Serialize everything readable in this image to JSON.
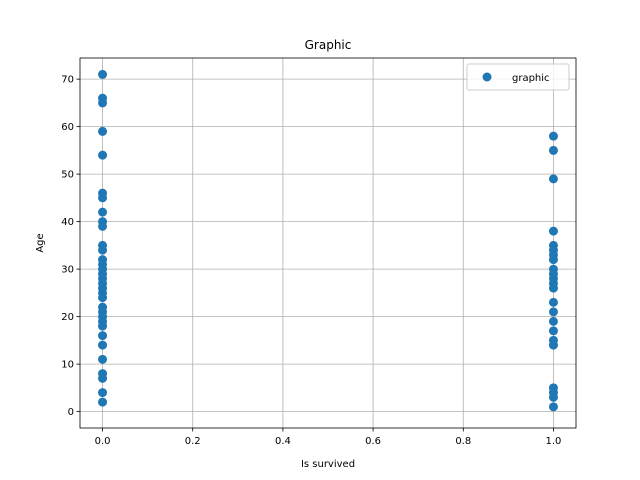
{
  "chart_data": {
    "type": "scatter",
    "title": "Graphic",
    "xlabel": "Is survived",
    "ylabel": "Age",
    "xlim": [
      -0.05,
      1.05
    ],
    "ylim": [
      -3.45,
      74.45
    ],
    "xticks": [
      0.0,
      0.2,
      0.4,
      0.6,
      0.8,
      1.0
    ],
    "xtick_labels": [
      "0.0",
      "0.2",
      "0.4",
      "0.6",
      "0.8",
      "1.0"
    ],
    "yticks": [
      0,
      10,
      20,
      30,
      40,
      50,
      60,
      70
    ],
    "ytick_labels": [
      "0",
      "10",
      "20",
      "30",
      "40",
      "50",
      "60",
      "70"
    ],
    "grid": true,
    "legend_position": "top-right",
    "series": [
      {
        "name": "graphic",
        "color": "#1f77b4",
        "points": [
          [
            0,
            71
          ],
          [
            0,
            66
          ],
          [
            0,
            65
          ],
          [
            0,
            59
          ],
          [
            0,
            54
          ],
          [
            0,
            46
          ],
          [
            0,
            45
          ],
          [
            0,
            42
          ],
          [
            0,
            40
          ],
          [
            0,
            39
          ],
          [
            0,
            35
          ],
          [
            0,
            34
          ],
          [
            0,
            32
          ],
          [
            0,
            31
          ],
          [
            0,
            30
          ],
          [
            0,
            29
          ],
          [
            0,
            28
          ],
          [
            0,
            27
          ],
          [
            0,
            26
          ],
          [
            0,
            25
          ],
          [
            0,
            24
          ],
          [
            0,
            22
          ],
          [
            0,
            21
          ],
          [
            0,
            20
          ],
          [
            0,
            19
          ],
          [
            0,
            18
          ],
          [
            0,
            16
          ],
          [
            0,
            14
          ],
          [
            0,
            11
          ],
          [
            0,
            8
          ],
          [
            0,
            7
          ],
          [
            0,
            4
          ],
          [
            0,
            2
          ],
          [
            1,
            58
          ],
          [
            1,
            55
          ],
          [
            1,
            49
          ],
          [
            1,
            38
          ],
          [
            1,
            35
          ],
          [
            1,
            34
          ],
          [
            1,
            33
          ],
          [
            1,
            32
          ],
          [
            1,
            30
          ],
          [
            1,
            29
          ],
          [
            1,
            28
          ],
          [
            1,
            27
          ],
          [
            1,
            26
          ],
          [
            1,
            23
          ],
          [
            1,
            21
          ],
          [
            1,
            19
          ],
          [
            1,
            17
          ],
          [
            1,
            15
          ],
          [
            1,
            14
          ],
          [
            1,
            5
          ],
          [
            1,
            4
          ],
          [
            1,
            3
          ],
          [
            1,
            1
          ]
        ]
      }
    ]
  }
}
